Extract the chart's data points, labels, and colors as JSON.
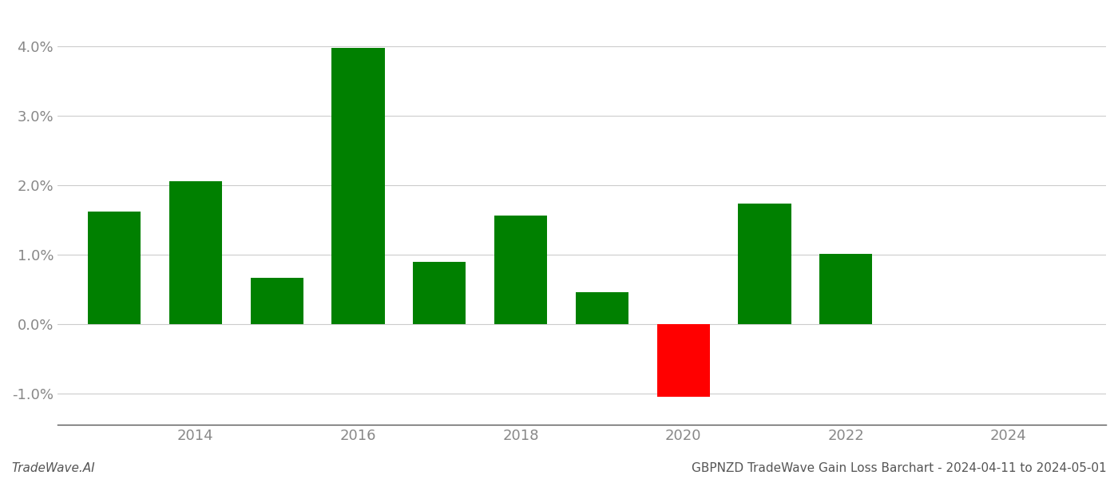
{
  "years": [
    2013,
    2014,
    2015,
    2016,
    2017,
    2018,
    2019,
    2020,
    2021,
    2022,
    2023
  ],
  "values": [
    1.62,
    2.06,
    0.67,
    3.98,
    0.9,
    1.57,
    0.46,
    -1.05,
    1.74,
    1.01,
    0.0
  ],
  "bar_colors": [
    "#008000",
    "#008000",
    "#008000",
    "#008000",
    "#008000",
    "#008000",
    "#008000",
    "#ff0000",
    "#008000",
    "#008000",
    "#008000"
  ],
  "ylim": [
    -1.45,
    4.5
  ],
  "yticks": [
    -1.0,
    0.0,
    1.0,
    2.0,
    3.0,
    4.0
  ],
  "footer_left": "TradeWave.AI",
  "footer_right": "GBPNZD TradeWave Gain Loss Barchart - 2024-04-11 to 2024-05-01",
  "background_color": "#ffffff",
  "grid_color": "#cccccc",
  "bar_width": 0.65,
  "xlim": [
    2012.3,
    2025.2
  ],
  "xticks": [
    2014,
    2016,
    2018,
    2020,
    2022,
    2024
  ],
  "xtick_labels": [
    "2014",
    "2016",
    "2018",
    "2020",
    "2022",
    "2024"
  ]
}
